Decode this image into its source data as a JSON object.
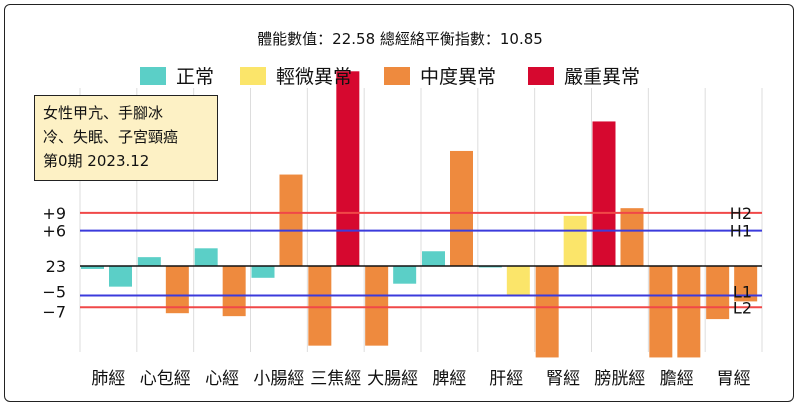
{
  "header": "體能數值：22.58 總經絡平衡指數：10.85",
  "note": "女性甲亢、手腳冰\n冷、失眠、子宮頸癌\n第0期 2023.12",
  "legend": [
    {
      "label": "正常",
      "color": "#5bcfc7"
    },
    {
      "label": "輕微異常",
      "color": "#fbe56a"
    },
    {
      "label": "中度異常",
      "color": "#ee8a3e"
    },
    {
      "label": "嚴重異常",
      "color": "#d6082f"
    }
  ],
  "chart_data": {
    "type": "bar",
    "baseline": 23,
    "yticks": [
      {
        "label": "+9",
        "value": 9
      },
      {
        "label": "+6",
        "value": 6
      },
      {
        "label": "23",
        "value": 0
      },
      {
        "label": "−5",
        "value": -5
      },
      {
        "label": "−7",
        "value": -7
      }
    ],
    "lines": [
      {
        "label": "H2",
        "value": 9,
        "color": "#f04848"
      },
      {
        "label": "H1",
        "value": 6,
        "color": "#3b3bdc"
      },
      {
        "label": "L1",
        "value": -5,
        "color": "#3b3bdc"
      },
      {
        "label": "L2",
        "value": -7,
        "color": "#f04848"
      }
    ],
    "ylim": [
      -16,
      33
    ],
    "categories": [
      "肺經",
      "心包經",
      "心經",
      "小腸經",
      "三焦經",
      "大腸經",
      "脾經",
      "肝經",
      "腎經",
      "膀胱經",
      "膽經",
      "胃經"
    ],
    "bars": [
      {
        "category": "肺經",
        "value": -0.5,
        "level": "正常",
        "color": "#5bcfc7"
      },
      {
        "category": "肺經",
        "value": -3.5,
        "level": "正常",
        "color": "#5bcfc7"
      },
      {
        "category": "心包經",
        "value": 1.5,
        "level": "正常",
        "color": "#5bcfc7"
      },
      {
        "category": "心包經",
        "value": -8,
        "level": "中度異常",
        "color": "#ee8a3e"
      },
      {
        "category": "心經",
        "value": 3,
        "level": "正常",
        "color": "#5bcfc7"
      },
      {
        "category": "心經",
        "value": -8.5,
        "level": "中度異常",
        "color": "#ee8a3e"
      },
      {
        "category": "小腸經",
        "value": -2,
        "level": "正常",
        "color": "#5bcfc7"
      },
      {
        "category": "小腸經",
        "value": 15.5,
        "level": "中度異常",
        "color": "#ee8a3e"
      },
      {
        "category": "三焦經",
        "value": -13.5,
        "level": "中度異常",
        "color": "#ee8a3e"
      },
      {
        "category": "三焦經",
        "value": 33,
        "level": "嚴重異常",
        "color": "#d6082f"
      },
      {
        "category": "大腸經",
        "value": -13.5,
        "level": "中度異常",
        "color": "#ee8a3e"
      },
      {
        "category": "大腸經",
        "value": -3,
        "level": "正常",
        "color": "#5bcfc7"
      },
      {
        "category": "脾經",
        "value": 2.5,
        "level": "正常",
        "color": "#5bcfc7"
      },
      {
        "category": "脾經",
        "value": 19.5,
        "level": "中度異常",
        "color": "#ee8a3e"
      },
      {
        "category": "肝經",
        "value": -0.2,
        "level": "正常",
        "color": "#5bcfc7"
      },
      {
        "category": "肝經",
        "value": -5,
        "level": "輕微異常",
        "color": "#fbe56a"
      },
      {
        "category": "腎經",
        "value": -15.5,
        "level": "中度異常",
        "color": "#ee8a3e"
      },
      {
        "category": "腎經",
        "value": 8.5,
        "level": "輕微異常",
        "color": "#fbe56a"
      },
      {
        "category": "膀胱經",
        "value": 24.5,
        "level": "嚴重異常",
        "color": "#d6082f"
      },
      {
        "category": "膀胱經",
        "value": 9.8,
        "level": "中度異常",
        "color": "#ee8a3e"
      },
      {
        "category": "膽經",
        "value": -15.5,
        "level": "中度異常",
        "color": "#ee8a3e"
      },
      {
        "category": "膽經",
        "value": -15.5,
        "level": "中度異常",
        "color": "#ee8a3e"
      },
      {
        "category": "胃經",
        "value": -9,
        "level": "中度異常",
        "color": "#ee8a3e"
      },
      {
        "category": "胃經",
        "value": -6,
        "level": "中度異常",
        "color": "#ee8a3e"
      }
    ]
  }
}
